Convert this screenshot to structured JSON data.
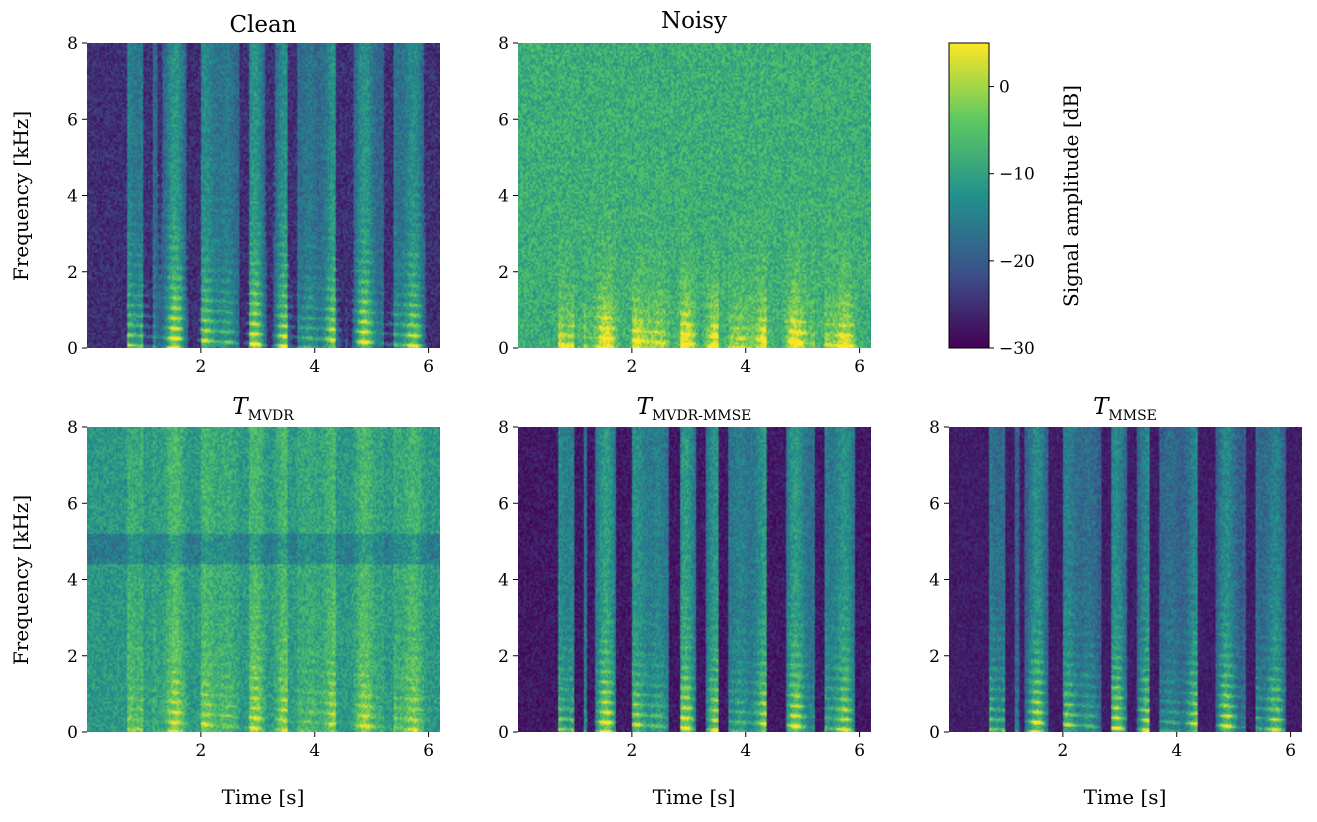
{
  "colormap": [
    "#440154",
    "#3b528b",
    "#21918c",
    "#5ec962",
    "#fde725"
  ],
  "chart_data": [
    {
      "type": "heatmap",
      "title": "Clean",
      "xlabel": "",
      "ylabel": "Frequency [kHz]",
      "xlim": [
        0,
        6.2
      ],
      "ylim": [
        0,
        8
      ],
      "xticks": [
        2,
        4,
        6
      ],
      "yticks": [
        0,
        2,
        4,
        6,
        8
      ],
      "profile": "clean"
    },
    {
      "type": "heatmap",
      "title": "Noisy",
      "xlabel": "",
      "ylabel": "",
      "xlim": [
        0,
        6.2
      ],
      "ylim": [
        0,
        8
      ],
      "xticks": [
        2,
        4,
        6
      ],
      "yticks": [
        0,
        2,
        4,
        6,
        8
      ],
      "profile": "noisy"
    },
    {
      "type": "heatmap",
      "title_base": "T",
      "title_sub": "MVDR",
      "xlabel": "Time [s]",
      "ylabel": "Frequency [kHz]",
      "xlim": [
        0,
        6.2
      ],
      "ylim": [
        0,
        8
      ],
      "xticks": [
        2,
        4,
        6
      ],
      "yticks": [
        0,
        2,
        4,
        6,
        8
      ],
      "profile": "mvdr"
    },
    {
      "type": "heatmap",
      "title_base": "T",
      "title_sub": "MVDR-MMSE",
      "xlabel": "Time [s]",
      "ylabel": "",
      "xlim": [
        0,
        6.2
      ],
      "ylim": [
        0,
        8
      ],
      "xticks": [
        2,
        4,
        6
      ],
      "yticks": [
        0,
        2,
        4,
        6,
        8
      ],
      "profile": "mvdrmmse"
    },
    {
      "type": "heatmap",
      "title_base": "T",
      "title_sub": "MMSE",
      "xlabel": "Time [s]",
      "ylabel": "",
      "xlim": [
        0,
        6.2
      ],
      "ylim": [
        0,
        8
      ],
      "xticks": [
        2,
        4,
        6
      ],
      "yticks": [
        0,
        2,
        4,
        6,
        8
      ],
      "profile": "mmse"
    }
  ],
  "colorbar": {
    "label": "Signal amplitude [dB]",
    "range": [
      -30,
      5
    ],
    "ticks": [
      0,
      -10,
      -20,
      -30
    ],
    "tick_labels": [
      "0",
      "−10",
      "−20",
      "−30"
    ]
  }
}
